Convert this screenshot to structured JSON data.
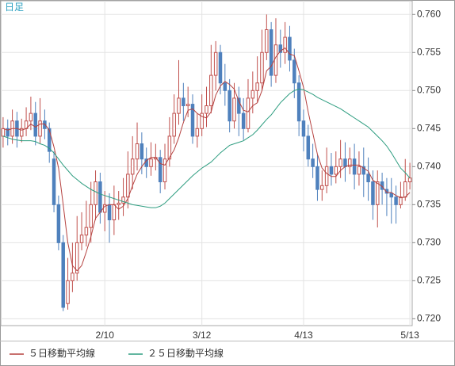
{
  "chart_data": {
    "type": "candlestick",
    "title": "日足",
    "categories": [
      null,
      null,
      null,
      null,
      null,
      null,
      null,
      null,
      null,
      null,
      null,
      null,
      null,
      null,
      null,
      null,
      null,
      null,
      null,
      null,
      null,
      null,
      "2/10",
      null,
      null,
      null,
      null,
      null,
      null,
      null,
      null,
      null,
      null,
      null,
      null,
      null,
      null,
      null,
      null,
      null,
      null,
      null,
      null,
      "3/12",
      null,
      null,
      null,
      null,
      null,
      null,
      null,
      null,
      null,
      null,
      null,
      null,
      null,
      null,
      null,
      null,
      null,
      null,
      null,
      null,
      null,
      "4/13",
      null,
      null,
      null,
      null,
      null,
      null,
      null,
      null,
      null,
      null,
      null,
      null,
      null,
      null,
      null,
      null,
      null,
      null,
      null,
      null,
      null,
      null,
      "5/13"
    ],
    "candles": {
      "up_color": "#c0504d",
      "down_color": "#4f81bd",
      "open": [
        0.744,
        0.745,
        0.744,
        0.746,
        0.744,
        0.745,
        0.746,
        0.747,
        0.744,
        0.746,
        0.745,
        0.741,
        0.735,
        0.73,
        0.722,
        0.725,
        0.726,
        0.73,
        0.731,
        0.732,
        0.735,
        0.738,
        0.734,
        0.735,
        0.733,
        0.735,
        0.7352,
        0.736,
        0.739,
        0.741,
        0.743,
        0.741,
        0.74,
        0.741,
        0.7412,
        0.738,
        0.741,
        0.744,
        0.747,
        0.749,
        0.748,
        0.7482,
        0.744,
        0.745,
        0.747,
        0.748,
        0.752,
        0.755,
        0.751,
        0.75,
        0.746,
        0.749,
        0.747,
        0.745,
        0.749,
        0.75,
        0.751,
        0.755,
        0.758,
        0.752,
        0.756,
        0.755,
        0.757,
        0.754,
        0.751,
        0.746,
        0.744,
        0.741,
        0.74,
        0.737,
        0.7375,
        0.74,
        0.739,
        0.74,
        0.741,
        0.74,
        0.741,
        0.739,
        0.74,
        0.739,
        0.738,
        0.735,
        0.738,
        0.737,
        0.7365,
        0.736,
        0.735,
        0.736,
        0.738
      ],
      "high": [
        0.7465,
        0.7462,
        0.7475,
        0.7472,
        0.7463,
        0.7478,
        0.7492,
        0.7485,
        0.749,
        0.7475,
        0.7458,
        0.742,
        0.7362,
        0.731,
        0.728,
        0.73,
        0.7335,
        0.734,
        0.7355,
        0.738,
        0.7395,
        0.7392,
        0.7368,
        0.7365,
        0.7375,
        0.7368,
        0.7385,
        0.742,
        0.744,
        0.7458,
        0.7445,
        0.7425,
        0.7432,
        0.743,
        0.7422,
        0.743,
        0.7465,
        0.7495,
        0.754,
        0.751,
        0.7505,
        0.7495,
        0.747,
        0.7495,
        0.7505,
        0.756,
        0.7565,
        0.756,
        0.7535,
        0.7515,
        0.751,
        0.7505,
        0.749,
        0.7515,
        0.7525,
        0.7545,
        0.758,
        0.76,
        0.759,
        0.7595,
        0.758,
        0.759,
        0.7585,
        0.7555,
        0.752,
        0.7475,
        0.7455,
        0.743,
        0.7415,
        0.7395,
        0.7425,
        0.7418,
        0.742,
        0.7435,
        0.7432,
        0.7425,
        0.743,
        0.742,
        0.7425,
        0.7412,
        0.7395,
        0.7395,
        0.7392,
        0.7385,
        0.7385,
        0.7375,
        0.738,
        0.741,
        0.7405
      ],
      "low": [
        0.7425,
        0.7428,
        0.743,
        0.7425,
        0.7432,
        0.744,
        0.7448,
        0.7428,
        0.743,
        0.7436,
        0.7405,
        0.734,
        0.729,
        0.721,
        0.7212,
        0.7235,
        0.725,
        0.729,
        0.7295,
        0.73,
        0.733,
        0.7325,
        0.7315,
        0.73,
        0.731,
        0.733,
        0.7335,
        0.7345,
        0.737,
        0.7395,
        0.739,
        0.7385,
        0.7388,
        0.7395,
        0.7365,
        0.737,
        0.74,
        0.743,
        0.7455,
        0.746,
        0.7465,
        0.743,
        0.7425,
        0.744,
        0.7452,
        0.747,
        0.75,
        0.7495,
        0.748,
        0.7445,
        0.745,
        0.744,
        0.7435,
        0.7445,
        0.747,
        0.7485,
        0.75,
        0.754,
        0.7505,
        0.751,
        0.753,
        0.7535,
        0.7525,
        0.749,
        0.744,
        0.742,
        0.74,
        0.7385,
        0.7355,
        0.7355,
        0.7365,
        0.7375,
        0.7378,
        0.7385,
        0.738,
        0.739,
        0.737,
        0.7375,
        0.736,
        0.7355,
        0.733,
        0.732,
        0.735,
        0.7335,
        0.7325,
        0.7325,
        0.7345,
        0.7355,
        0.737
      ],
      "close": [
        0.745,
        0.744,
        0.746,
        0.744,
        0.745,
        0.746,
        0.747,
        0.744,
        0.746,
        0.745,
        0.742,
        0.735,
        0.73,
        0.7215,
        0.725,
        0.726,
        0.73,
        0.731,
        0.732,
        0.735,
        0.738,
        0.734,
        0.735,
        0.733,
        0.735,
        0.7352,
        0.736,
        0.739,
        0.741,
        0.743,
        0.741,
        0.74,
        0.741,
        0.7412,
        0.738,
        0.741,
        0.744,
        0.747,
        0.749,
        0.748,
        0.7482,
        0.744,
        0.745,
        0.747,
        0.748,
        0.752,
        0.755,
        0.751,
        0.75,
        0.746,
        0.749,
        0.747,
        0.745,
        0.749,
        0.75,
        0.751,
        0.755,
        0.758,
        0.752,
        0.756,
        0.755,
        0.757,
        0.754,
        0.751,
        0.746,
        0.744,
        0.741,
        0.74,
        0.737,
        0.7375,
        0.74,
        0.739,
        0.74,
        0.741,
        0.74,
        0.741,
        0.739,
        0.74,
        0.739,
        0.738,
        0.735,
        0.738,
        0.737,
        0.7365,
        0.736,
        0.735,
        0.736,
        0.738,
        0.7385
      ]
    },
    "series": [
      {
        "name": "５日移動平均線",
        "color": "#b5413f",
        "values": [
          0.745,
          0.7448,
          0.745,
          0.745,
          0.7448,
          0.745,
          0.7456,
          0.7452,
          0.7456,
          0.7456,
          0.7448,
          0.7426,
          0.7398,
          0.735,
          0.73,
          0.727,
          0.7263,
          0.727,
          0.7288,
          0.7308,
          0.7332,
          0.734,
          0.7348,
          0.735,
          0.735,
          0.7344,
          0.7348,
          0.7358,
          0.7375,
          0.739,
          0.74,
          0.7408,
          0.7412,
          0.7412,
          0.7404,
          0.7402,
          0.7412,
          0.7422,
          0.7438,
          0.7458,
          0.7474,
          0.7476,
          0.747,
          0.7466,
          0.7464,
          0.7472,
          0.7494,
          0.7506,
          0.7512,
          0.7508,
          0.7502,
          0.7486,
          0.7474,
          0.7472,
          0.748,
          0.7484,
          0.75,
          0.7526,
          0.7532,
          0.7544,
          0.7552,
          0.7556,
          0.7548,
          0.7546,
          0.7526,
          0.7504,
          0.7472,
          0.7444,
          0.7416,
          0.7398,
          0.7391,
          0.7387,
          0.7387,
          0.7395,
          0.74,
          0.7402,
          0.7402,
          0.7402,
          0.7398,
          0.7394,
          0.7382,
          0.7378,
          0.7374,
          0.7366,
          0.7366,
          0.7362,
          0.7359,
          0.736,
          0.7366
        ]
      },
      {
        "name": "２５日移動平均線",
        "color": "#2e9d80",
        "values": [
          0.744,
          0.7438,
          0.7436,
          0.7435,
          0.7434,
          0.7434,
          0.7434,
          0.7433,
          0.743,
          0.7428,
          0.7424,
          0.7418,
          0.741,
          0.7402,
          0.7395,
          0.7388,
          0.7383,
          0.7378,
          0.7374,
          0.737,
          0.7367,
          0.7364,
          0.7362,
          0.736,
          0.7358,
          0.7356,
          0.7354,
          0.7352,
          0.735,
          0.7349,
          0.7348,
          0.7347,
          0.7346,
          0.7346,
          0.7348,
          0.7352,
          0.7358,
          0.7364,
          0.737,
          0.7376,
          0.7382,
          0.7388,
          0.7393,
          0.7398,
          0.7402,
          0.7406,
          0.7412,
          0.7418,
          0.7423,
          0.7428,
          0.743,
          0.7432,
          0.7434,
          0.7438,
          0.7442,
          0.7448,
          0.7455,
          0.7462,
          0.7468,
          0.7476,
          0.7484,
          0.749,
          0.7496,
          0.75,
          0.7502,
          0.7501,
          0.7498,
          0.7495,
          0.7491,
          0.7488,
          0.7485,
          0.7482,
          0.7479,
          0.7476,
          0.7472,
          0.7468,
          0.7464,
          0.746,
          0.7456,
          0.7452,
          0.7446,
          0.744,
          0.7434,
          0.7427,
          0.7418,
          0.7408,
          0.7398,
          0.7392,
          0.7385
        ]
      }
    ],
    "ylim": [
      0.7191,
      0.7618
    ],
    "yticks": [
      {
        "value": 0.72,
        "label": "0.720"
      },
      {
        "value": 0.725,
        "label": "0.725"
      },
      {
        "value": 0.73,
        "label": "0.730"
      },
      {
        "value": 0.735,
        "label": "0.735"
      },
      {
        "value": 0.74,
        "label": "0.740"
      },
      {
        "value": 0.745,
        "label": "0.745"
      },
      {
        "value": 0.75,
        "label": "0.750"
      },
      {
        "value": 0.755,
        "label": "0.755"
      },
      {
        "value": 0.76,
        "label": "0.760"
      }
    ],
    "grid": true
  }
}
